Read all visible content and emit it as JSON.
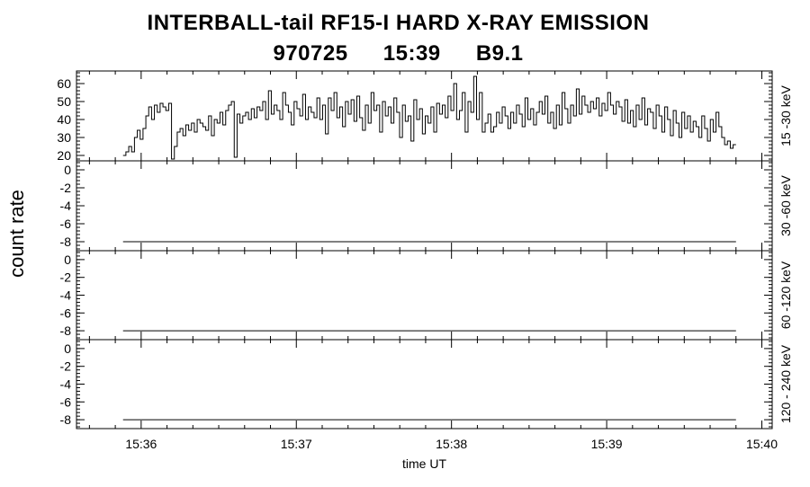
{
  "header": {
    "title": "INTERBALL-tail  RF15-I  HARD  X-RAY  EMISSION",
    "date": "970725",
    "time": "15:39",
    "flare_class": "B9.1"
  },
  "chart_data": {
    "type": "line",
    "ylabel": "count rate",
    "xlabel": "time UT",
    "x_ticks": [
      "15:36",
      "15:37",
      "15:38",
      "15:39",
      "15:40"
    ],
    "xlim": [
      "15:35:35",
      "15:40:04"
    ],
    "panels": [
      {
        "band": "15 -30 keV",
        "ylim": [
          17,
          67
        ],
        "yticks": [
          "20",
          "30",
          "40",
          "50",
          "60"
        ],
        "series": [
          {
            "x_start": "15:35:53",
            "x_end": "15:39:50",
            "step_seconds": 1.2,
            "values": [
              20,
              22,
              25,
              22,
              30,
              34,
              29,
              35,
              42,
              47,
              40,
              48,
              44,
              49,
              47,
              45,
              49,
              18,
              25,
              33,
              35,
              31,
              37,
              34,
              38,
              33,
              40,
              38,
              36,
              34,
              42,
              31,
              40,
              38,
              44,
              37,
              45,
              48,
              50,
              19,
              43,
              38,
              42,
              44,
              40,
              46,
              41,
              47,
              45,
              50,
              40,
              56,
              43,
              48,
              45,
              40,
              55,
              48,
              44,
              37,
              50,
              46,
              42,
              54,
              40,
              47,
              44,
              41,
              52,
              40,
              48,
              32,
              52,
              45,
              55,
              41,
              47,
              36,
              50,
              43,
              51,
              39,
              53,
              41,
              34,
              48,
              38,
              55,
              45,
              48,
              33,
              50,
              42,
              47,
              38,
              52,
              44,
              30,
              48,
              39,
              42,
              28,
              51,
              40,
              46,
              32,
              42,
              38,
              47,
              33,
              49,
              43,
              48,
              41,
              53,
              45,
              60,
              40,
              45,
              55,
              33,
              50,
              44,
              64,
              40,
              55,
              33,
              38,
              43,
              33,
              36,
              44,
              38,
              47,
              42,
              35,
              44,
              38,
              48,
              43,
              36,
              52,
              40,
              46,
              37,
              44,
              50,
              43,
              53,
              38,
              44,
              35,
              48,
              37,
              55,
              46,
              38,
              48,
              42,
              57,
              43,
              53,
              48,
              44,
              50,
              46,
              52,
              42,
              49,
              45,
              55,
              48,
              43,
              50,
              47,
              39,
              51,
              38,
              45,
              36,
              48,
              40,
              52,
              37,
              46,
              44,
              35,
              48,
              42,
              33,
              47,
              40,
              31,
              45,
              38,
              30,
              44,
              35,
              42,
              33,
              39,
              36,
              30,
              42,
              35,
              28,
              40,
              33,
              44,
              36,
              30,
              26,
              28,
              24,
              26
            ]
          }
        ]
      },
      {
        "band": "30 -60 keV",
        "ylim": [
          -9,
          1
        ],
        "yticks": [
          "-8",
          "-6",
          "-4",
          "-2",
          "0"
        ],
        "series": [
          {
            "x_start": "15:35:53",
            "x_end": "15:39:50",
            "values": [
              -8,
              -8
            ]
          }
        ]
      },
      {
        "band": "60 -120 keV",
        "ylim": [
          -9,
          1
        ],
        "yticks": [
          "-8",
          "-6",
          "-4",
          "-2",
          "0"
        ],
        "series": [
          {
            "x_start": "15:35:53",
            "x_end": "15:39:50",
            "values": [
              -8,
              -8
            ]
          }
        ]
      },
      {
        "band": "120 - 240 keV",
        "ylim": [
          -9,
          1
        ],
        "yticks": [
          "-8",
          "-6",
          "-4",
          "-2",
          "0"
        ],
        "series": [
          {
            "x_start": "15:35:53",
            "x_end": "15:39:50",
            "values": [
              -8,
              -8
            ]
          }
        ]
      }
    ],
    "grid": false
  }
}
